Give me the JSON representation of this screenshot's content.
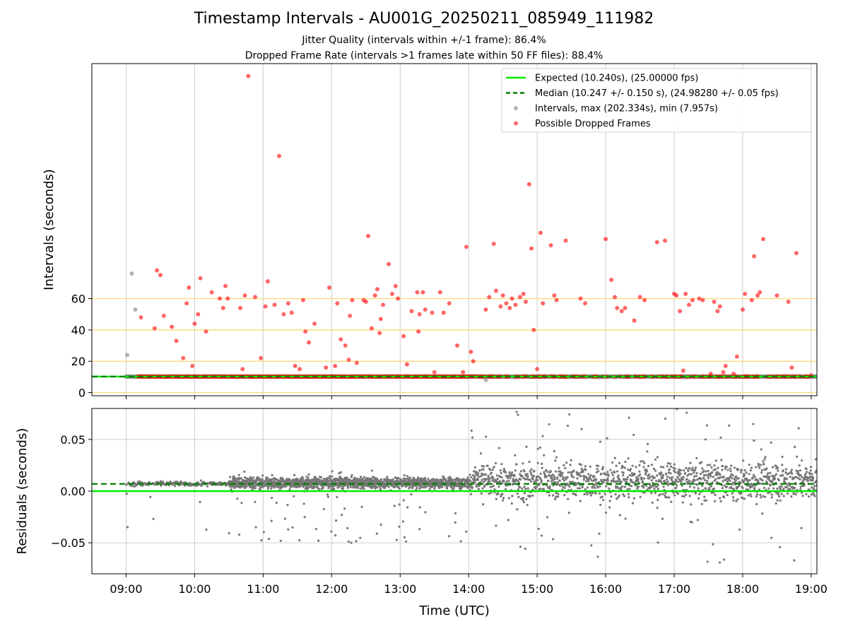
{
  "chart_data": [
    {
      "type": "scatter",
      "title": "Timestamp Intervals - AU001G_20250211_085949_111982",
      "subtitle": [
        "Jitter Quality (intervals within +/-1 frame): 86.4%",
        "Dropped Frame Rate (intervals >1 frames late within 50 FF files): 88.4%"
      ],
      "xlabel": "",
      "ylabel": "Intervals (seconds)",
      "xlim": [
        "08:30",
        "19:05"
      ],
      "ylim": [
        -2,
        210
      ],
      "yticks": [
        0,
        20,
        40,
        60
      ],
      "grid": "x",
      "guide_lines": [
        0,
        10.24,
        20,
        40,
        60
      ],
      "legend_position": "top-right",
      "legend": [
        "Expected (10.240s), (25.00000 fps)",
        "Median (10.247 +/- 0.150 s), (24.98280 +/- 0.05 fps)",
        "Intervals, max (202.334s), min (7.957s)",
        "Possible Dropped Frames"
      ],
      "colors": {
        "expected": "#00ee00",
        "median": "#008000",
        "intervals": "#808080",
        "dropped": "#ff0000",
        "guide": "#ffd56b"
      },
      "series": [
        {
          "name": "Expected (10.240s), (25.00000 fps)",
          "kind": "hline",
          "y": 10.24
        },
        {
          "name": "Median (10.247 +/- 0.150 s), (24.98280 +/- 0.05 fps)",
          "kind": "hline-dashed",
          "y": 10.247
        },
        {
          "name": "Intervals, max (202.334s), min (7.957s)",
          "kind": "points",
          "points": [
            [
              "09:00",
              10.2
            ],
            [
              "09:01",
              24
            ],
            [
              "09:05",
              76
            ],
            [
              "09:08",
              53
            ],
            [
              "14:15",
              8.0
            ],
            [
              "14:40",
              9.6
            ],
            [
              "15:25",
              9.8
            ],
            [
              "15:32",
              10.1
            ],
            [
              "15:55",
              9.7
            ],
            [
              "16:20",
              10.0
            ],
            [
              "17:10",
              9.7
            ],
            [
              "17:55",
              10.4
            ],
            [
              "18:45",
              9.9
            ],
            [
              "19:00",
              10.2
            ]
          ],
          "baseline_band": {
            "from": "09:00",
            "to": "19:05",
            "y": 10.2
          }
        },
        {
          "name": "Possible Dropped Frames",
          "kind": "points",
          "points": [
            [
              "09:13",
              48
            ],
            [
              "09:25",
              41
            ],
            [
              "09:27",
              78
            ],
            [
              "09:30",
              75
            ],
            [
              "09:33",
              49
            ],
            [
              "09:40",
              42
            ],
            [
              "09:44",
              33
            ],
            [
              "09:50",
              22
            ],
            [
              "09:53",
              57
            ],
            [
              "09:55",
              67
            ],
            [
              "09:58",
              17
            ],
            [
              "10:00",
              44
            ],
            [
              "10:03",
              50
            ],
            [
              "10:05",
              73
            ],
            [
              "10:10",
              39
            ],
            [
              "10:15",
              64
            ],
            [
              "10:22",
              60
            ],
            [
              "10:25",
              54
            ],
            [
              "10:27",
              68
            ],
            [
              "10:29",
              60
            ],
            [
              "10:40",
              54
            ],
            [
              "10:42",
              15
            ],
            [
              "10:44",
              62
            ],
            [
              "10:47",
              202
            ],
            [
              "10:53",
              61
            ],
            [
              "10:58",
              22
            ],
            [
              "11:02",
              55
            ],
            [
              "11:04",
              71
            ],
            [
              "11:10",
              56
            ],
            [
              "11:14",
              151
            ],
            [
              "11:18",
              50
            ],
            [
              "11:22",
              57
            ],
            [
              "11:25",
              51
            ],
            [
              "11:28",
              17
            ],
            [
              "11:32",
              15
            ],
            [
              "11:35",
              59
            ],
            [
              "11:37",
              39
            ],
            [
              "11:40",
              32
            ],
            [
              "11:45",
              44
            ],
            [
              "11:55",
              16
            ],
            [
              "11:58",
              67
            ],
            [
              "12:03",
              17
            ],
            [
              "12:05",
              57
            ],
            [
              "12:08",
              34
            ],
            [
              "12:12",
              30
            ],
            [
              "12:15",
              21
            ],
            [
              "12:16",
              49
            ],
            [
              "12:18",
              59
            ],
            [
              "12:22",
              19
            ],
            [
              "12:28",
              59
            ],
            [
              "12:30",
              58
            ],
            [
              "12:32",
              100
            ],
            [
              "12:35",
              41
            ],
            [
              "12:38",
              62
            ],
            [
              "12:40",
              66
            ],
            [
              "12:42",
              38
            ],
            [
              "12:43",
              47
            ],
            [
              "12:45",
              56
            ],
            [
              "12:50",
              82
            ],
            [
              "12:53",
              63
            ],
            [
              "12:56",
              68
            ],
            [
              "12:58",
              60
            ],
            [
              "13:03",
              36
            ],
            [
              "13:06",
              18
            ],
            [
              "13:10",
              52
            ],
            [
              "13:15",
              64
            ],
            [
              "13:16",
              39
            ],
            [
              "13:17",
              50
            ],
            [
              "13:20",
              64
            ],
            [
              "13:22",
              53
            ],
            [
              "13:28",
              51
            ],
            [
              "13:30",
              13
            ],
            [
              "13:35",
              64
            ],
            [
              "13:38",
              51
            ],
            [
              "13:43",
              57
            ],
            [
              "13:50",
              30
            ],
            [
              "13:55",
              13
            ],
            [
              "13:58",
              93
            ],
            [
              "14:02",
              26
            ],
            [
              "14:04",
              20
            ],
            [
              "14:15",
              53
            ],
            [
              "14:18",
              61
            ],
            [
              "14:22",
              95
            ],
            [
              "14:24",
              65
            ],
            [
              "14:28",
              55
            ],
            [
              "14:30",
              62
            ],
            [
              "14:33",
              57
            ],
            [
              "14:36",
              54
            ],
            [
              "14:38",
              60
            ],
            [
              "14:41",
              56
            ],
            [
              "14:45",
              61
            ],
            [
              "14:48",
              63
            ],
            [
              "14:50",
              58
            ],
            [
              "14:53",
              133
            ],
            [
              "14:55",
              92
            ],
            [
              "14:57",
              40
            ],
            [
              "15:00",
              15
            ],
            [
              "15:03",
              102
            ],
            [
              "15:05",
              57
            ],
            [
              "15:12",
              94
            ],
            [
              "15:15",
              62
            ],
            [
              "15:17",
              59
            ],
            [
              "15:25",
              97
            ],
            [
              "15:38",
              60
            ],
            [
              "15:42",
              57
            ],
            [
              "16:00",
              98
            ],
            [
              "16:05",
              72
            ],
            [
              "16:08",
              61
            ],
            [
              "16:10",
              54
            ],
            [
              "16:14",
              52
            ],
            [
              "16:17",
              54
            ],
            [
              "16:25",
              46
            ],
            [
              "16:30",
              61
            ],
            [
              "16:34",
              59
            ],
            [
              "16:45",
              96
            ],
            [
              "16:52",
              97
            ],
            [
              "17:00",
              63
            ],
            [
              "17:02",
              62
            ],
            [
              "17:05",
              52
            ],
            [
              "17:08",
              14
            ],
            [
              "17:10",
              63
            ],
            [
              "17:13",
              56
            ],
            [
              "17:16",
              59
            ],
            [
              "17:22",
              60
            ],
            [
              "17:25",
              59
            ],
            [
              "17:32",
              12
            ],
            [
              "17:35",
              58
            ],
            [
              "17:38",
              52
            ],
            [
              "17:40",
              55
            ],
            [
              "17:43",
              13
            ],
            [
              "17:45",
              17
            ],
            [
              "17:52",
              12
            ],
            [
              "17:55",
              23
            ],
            [
              "18:00",
              53
            ],
            [
              "18:02",
              63
            ],
            [
              "18:08",
              59
            ],
            [
              "18:10",
              87
            ],
            [
              "18:13",
              62
            ],
            [
              "18:15",
              64
            ],
            [
              "18:18",
              98
            ],
            [
              "18:30",
              62
            ],
            [
              "18:40",
              58
            ],
            [
              "18:43",
              16
            ],
            [
              "18:47",
              89
            ],
            [
              "19:00",
              11
            ]
          ],
          "baseline_band": {
            "from": "09:10",
            "to": "19:00",
            "y": 10.24
          }
        }
      ]
    },
    {
      "type": "scatter",
      "title": "",
      "xlabel": "Time (UTC)",
      "ylabel": "Residuals (seconds)",
      "xticks": [
        "09:00",
        "10:00",
        "11:00",
        "12:00",
        "13:00",
        "14:00",
        "15:00",
        "16:00",
        "17:00",
        "18:00",
        "19:00"
      ],
      "xlim": [
        "08:30",
        "19:05"
      ],
      "ylim": [
        -0.08,
        0.08
      ],
      "yticks": [
        -0.05,
        0.0,
        0.05
      ],
      "ytick_labels": [
        "−0.05",
        "0.00",
        "0.05"
      ],
      "grid": "both",
      "series": [
        {
          "name": "",
          "kind": "hline",
          "y": 0.0
        },
        {
          "name": "",
          "kind": "hline-dashed",
          "y": 0.007
        },
        {
          "name": "",
          "kind": "points",
          "segments": [
            {
              "from": "09:00",
              "to": "10:30",
              "center": 0.007,
              "spread": 0.004,
              "outlier_range": [
                -0.04,
                0.015
              ]
            },
            {
              "from": "10:30",
              "to": "14:00",
              "center": 0.008,
              "spread": 0.009,
              "outlier_range": [
                -0.05,
                0.02
              ]
            },
            {
              "from": "14:00",
              "to": "19:05",
              "center": 0.01,
              "spread": 0.03,
              "outlier_range": [
                -0.075,
                0.08
              ]
            }
          ]
        }
      ]
    }
  ]
}
